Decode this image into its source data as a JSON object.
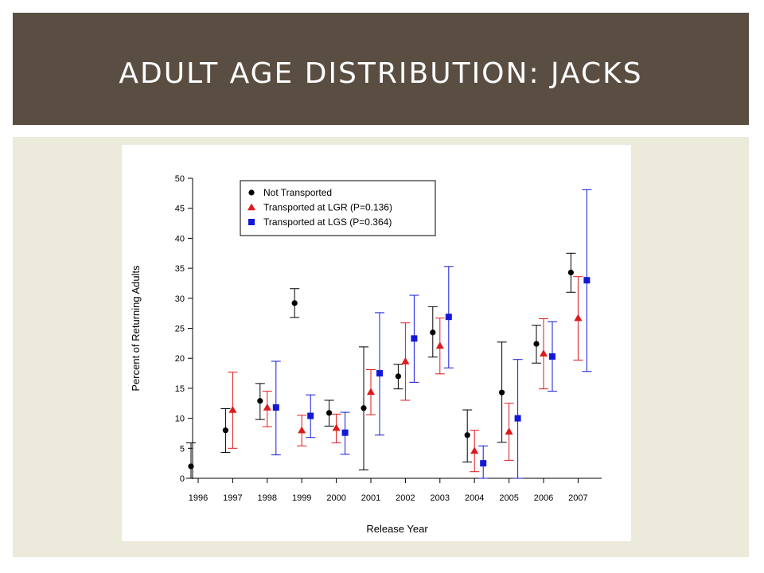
{
  "slide": {
    "title": "ADULT AGE DISTRIBUTION: JACKS"
  },
  "colors": {
    "title_bar": "#5a4e42",
    "content_panel": "#ebeadb",
    "not_transported": "#000000",
    "lgr": "#e0181b",
    "lgs": "#1218d8"
  },
  "chart_data": {
    "type": "scatter",
    "title": "",
    "xlabel": "Release Year",
    "ylabel": "Percent of Returning Adults",
    "ylim": [
      0,
      50
    ],
    "yticks": [
      0,
      5,
      10,
      15,
      20,
      25,
      30,
      35,
      40,
      45,
      50
    ],
    "categories": [
      "1996",
      "1997",
      "1998",
      "1999",
      "2000",
      "2001",
      "2002",
      "2003",
      "2004",
      "2005",
      "2006",
      "2007"
    ],
    "legend_position": "top-left",
    "error_bars": true,
    "series": [
      {
        "name": "Not Transported",
        "marker": "circle",
        "color": "#000000",
        "values": [
          2.0,
          8.0,
          12.9,
          29.2,
          10.9,
          11.7,
          17.0,
          24.3,
          7.2,
          14.3,
          22.4,
          34.3
        ],
        "lower": [
          0.0,
          4.3,
          9.8,
          26.8,
          8.7,
          1.4,
          14.9,
          20.2,
          2.7,
          6.0,
          19.2,
          31.0
        ],
        "upper": [
          5.9,
          11.6,
          15.8,
          31.6,
          13.0,
          21.9,
          19.0,
          28.6,
          11.4,
          22.7,
          25.5,
          37.5
        ]
      },
      {
        "name": "Transported at LGR (P=0.136)",
        "marker": "triangle",
        "color": "#e0181b",
        "values": [
          null,
          11.4,
          11.8,
          8.0,
          8.4,
          14.4,
          19.5,
          22.1,
          4.6,
          7.8,
          20.8,
          26.7
        ],
        "lower": [
          null,
          5.0,
          8.6,
          5.4,
          5.9,
          10.6,
          13.0,
          17.4,
          1.1,
          3.0,
          14.9,
          19.7
        ],
        "upper": [
          null,
          17.7,
          14.5,
          10.5,
          10.7,
          18.1,
          25.9,
          26.7,
          8.0,
          12.5,
          26.6,
          33.6
        ]
      },
      {
        "name": "Transported at LGS (P=0.364)",
        "marker": "square",
        "color": "#1218d8",
        "values": [
          null,
          null,
          11.8,
          10.4,
          7.6,
          17.5,
          23.3,
          26.9,
          2.5,
          10.0,
          20.3,
          33.0
        ],
        "lower": [
          null,
          null,
          3.9,
          6.8,
          4.0,
          7.2,
          16.0,
          18.4,
          0.0,
          0.0,
          14.5,
          17.8
        ],
        "upper": [
          null,
          null,
          19.5,
          13.9,
          11.0,
          27.6,
          30.5,
          35.3,
          5.4,
          19.8,
          26.1,
          48.1
        ]
      }
    ]
  }
}
